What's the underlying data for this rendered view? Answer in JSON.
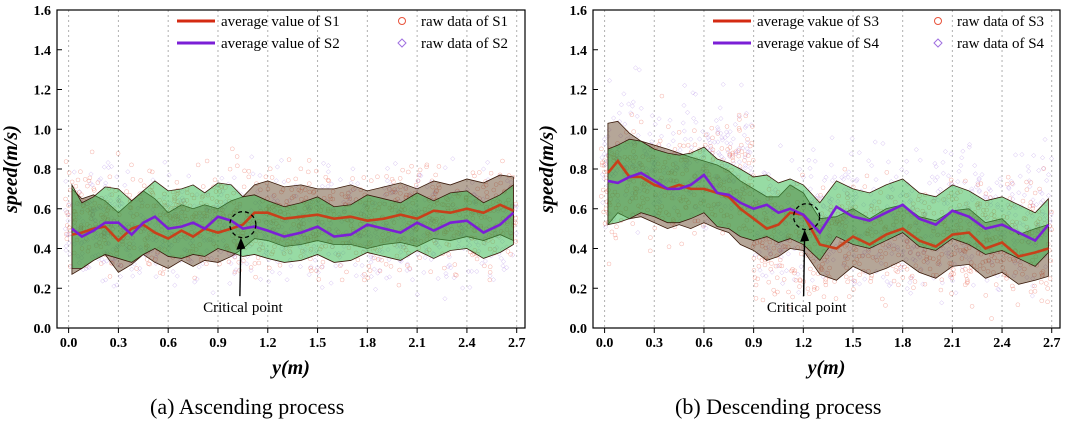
{
  "charts": [
    {
      "type": "line",
      "ylabel": "speed(m/s)",
      "xlabel": "y(m)",
      "xlim": [
        -0.07,
        2.75
      ],
      "ylim": [
        0,
        1.6
      ],
      "xticks": [
        "0.0",
        "0.3",
        "0.6",
        "0.9",
        "1.2",
        "1.5",
        "1.8",
        "2.1",
        "2.4",
        "2.7"
      ],
      "yticks": [
        "0.0",
        "0.2",
        "0.4",
        "0.6",
        "0.8",
        "1.0",
        "1.2",
        "1.4",
        "1.6"
      ],
      "legend_position": "top",
      "legend": [
        {
          "label": "average value of S1",
          "kind": "line",
          "color": "#d42a12"
        },
        {
          "label": "raw data of S1",
          "kind": "circle",
          "color": "#e8533c"
        },
        {
          "label": "average value of S2",
          "kind": "line",
          "color": "#7b1fd6"
        },
        {
          "label": "raw data of S2",
          "kind": "diamond",
          "color": "#a070e0"
        }
      ],
      "annotation": {
        "label": "Critical point",
        "circle_at": [
          1.05,
          0.52
        ],
        "text_at": [
          1.05,
          0.08
        ]
      },
      "series": [
        {
          "name": "average value of S1",
          "color": "#c8401a",
          "x": [
            0.02,
            0.08,
            0.15,
            0.22,
            0.3,
            0.38,
            0.45,
            0.52,
            0.6,
            0.68,
            0.75,
            0.82,
            0.9,
            0.98,
            1.05,
            1.12,
            1.2,
            1.3,
            1.4,
            1.5,
            1.6,
            1.7,
            1.8,
            1.9,
            2.0,
            2.1,
            2.2,
            2.3,
            2.4,
            2.5,
            2.6,
            2.68
          ],
          "y": [
            0.47,
            0.48,
            0.5,
            0.51,
            0.44,
            0.5,
            0.52,
            0.48,
            0.45,
            0.49,
            0.46,
            0.5,
            0.48,
            0.5,
            0.52,
            0.58,
            0.58,
            0.55,
            0.56,
            0.57,
            0.55,
            0.56,
            0.54,
            0.55,
            0.57,
            0.55,
            0.59,
            0.58,
            0.6,
            0.58,
            0.62,
            0.59
          ],
          "band_upper": [
            0.7,
            0.65,
            0.67,
            0.64,
            0.58,
            0.64,
            0.69,
            0.65,
            0.58,
            0.62,
            0.6,
            0.62,
            0.6,
            0.64,
            0.66,
            0.72,
            0.74,
            0.71,
            0.72,
            0.7,
            0.7,
            0.72,
            0.69,
            0.71,
            0.73,
            0.7,
            0.74,
            0.72,
            0.75,
            0.73,
            0.77,
            0.76
          ],
          "band_lower": [
            0.27,
            0.3,
            0.34,
            0.37,
            0.28,
            0.32,
            0.37,
            0.33,
            0.3,
            0.34,
            0.31,
            0.34,
            0.33,
            0.36,
            0.4,
            0.45,
            0.44,
            0.41,
            0.42,
            0.44,
            0.42,
            0.42,
            0.4,
            0.42,
            0.43,
            0.41,
            0.45,
            0.44,
            0.46,
            0.44,
            0.47,
            0.44
          ]
        },
        {
          "name": "average value of S2",
          "color": "#7b1fd6",
          "x": [
            0.02,
            0.08,
            0.15,
            0.22,
            0.3,
            0.38,
            0.45,
            0.52,
            0.6,
            0.68,
            0.75,
            0.82,
            0.9,
            0.98,
            1.05,
            1.12,
            1.2,
            1.3,
            1.4,
            1.5,
            1.6,
            1.7,
            1.8,
            1.9,
            2.0,
            2.1,
            2.2,
            2.3,
            2.4,
            2.5,
            2.6,
            2.68
          ],
          "y": [
            0.5,
            0.46,
            0.49,
            0.53,
            0.53,
            0.47,
            0.53,
            0.56,
            0.5,
            0.51,
            0.53,
            0.5,
            0.56,
            0.54,
            0.5,
            0.51,
            0.49,
            0.46,
            0.48,
            0.51,
            0.46,
            0.47,
            0.52,
            0.5,
            0.48,
            0.53,
            0.49,
            0.53,
            0.54,
            0.48,
            0.52,
            0.58
          ],
          "band_upper": [
            0.72,
            0.63,
            0.66,
            0.71,
            0.7,
            0.64,
            0.69,
            0.74,
            0.69,
            0.7,
            0.72,
            0.68,
            0.73,
            0.72,
            0.66,
            0.67,
            0.64,
            0.61,
            0.63,
            0.66,
            0.61,
            0.62,
            0.67,
            0.65,
            0.63,
            0.68,
            0.64,
            0.68,
            0.69,
            0.63,
            0.67,
            0.72
          ],
          "band_lower": [
            0.3,
            0.3,
            0.34,
            0.37,
            0.35,
            0.33,
            0.37,
            0.4,
            0.36,
            0.35,
            0.37,
            0.36,
            0.4,
            0.38,
            0.36,
            0.37,
            0.35,
            0.33,
            0.34,
            0.37,
            0.33,
            0.34,
            0.38,
            0.36,
            0.34,
            0.39,
            0.35,
            0.39,
            0.4,
            0.35,
            0.38,
            0.42
          ]
        }
      ],
      "raw_points": [
        {
          "series": "raw data of S1",
          "center": 0.55,
          "spread": 0.38,
          "count": 900
        },
        {
          "series": "raw data of S2",
          "center": 0.5,
          "spread": 0.42,
          "count": 700
        }
      ],
      "caption": "(a)  Ascending process"
    },
    {
      "type": "line",
      "ylabel": "speed(m/s)",
      "xlabel": "y(m)",
      "xlim": [
        -0.07,
        2.75
      ],
      "ylim": [
        0,
        1.6
      ],
      "xticks": [
        "0.0",
        "0.3",
        "0.6",
        "0.9",
        "1.2",
        "1.5",
        "1.8",
        "2.1",
        "2.4",
        "2.7"
      ],
      "yticks": [
        "0.0",
        "0.2",
        "0.4",
        "0.6",
        "0.8",
        "1.0",
        "1.2",
        "1.4",
        "1.6"
      ],
      "legend_position": "top",
      "legend": [
        {
          "label": "average vakue of S3",
          "kind": "line",
          "color": "#d42a12"
        },
        {
          "label": "raw data of S3",
          "kind": "circle",
          "color": "#e8533c"
        },
        {
          "label": "average vakue of S4",
          "kind": "line",
          "color": "#7b1fd6"
        },
        {
          "label": "raw data of S4",
          "kind": "diamond",
          "color": "#a070e0"
        }
      ],
      "annotation": {
        "label": "Critical point",
        "circle_at": [
          1.22,
          0.56
        ],
        "text_at": [
          1.22,
          0.08
        ]
      },
      "series": [
        {
          "name": "average vakue of S3",
          "color": "#c8401a",
          "x": [
            0.02,
            0.08,
            0.15,
            0.22,
            0.3,
            0.38,
            0.45,
            0.52,
            0.6,
            0.68,
            0.75,
            0.82,
            0.9,
            0.98,
            1.05,
            1.12,
            1.2,
            1.3,
            1.4,
            1.5,
            1.6,
            1.7,
            1.8,
            1.9,
            2.0,
            2.1,
            2.2,
            2.3,
            2.4,
            2.5,
            2.6,
            2.68
          ],
          "y": [
            0.78,
            0.84,
            0.76,
            0.76,
            0.72,
            0.7,
            0.72,
            0.7,
            0.7,
            0.68,
            0.66,
            0.6,
            0.55,
            0.5,
            0.52,
            0.58,
            0.57,
            0.42,
            0.4,
            0.46,
            0.42,
            0.47,
            0.5,
            0.44,
            0.41,
            0.47,
            0.48,
            0.4,
            0.43,
            0.36,
            0.38,
            0.4
          ],
          "band_upper": [
            1.03,
            1.04,
            0.98,
            0.94,
            0.92,
            0.9,
            0.88,
            0.86,
            0.84,
            0.82,
            0.79,
            0.74,
            0.7,
            0.66,
            0.66,
            0.72,
            0.68,
            0.55,
            0.56,
            0.6,
            0.55,
            0.6,
            0.62,
            0.56,
            0.54,
            0.59,
            0.6,
            0.53,
            0.55,
            0.47,
            0.5,
            0.52
          ],
          "band_lower": [
            0.52,
            0.58,
            0.55,
            0.56,
            0.53,
            0.5,
            0.52,
            0.5,
            0.53,
            0.5,
            0.48,
            0.42,
            0.39,
            0.34,
            0.36,
            0.4,
            0.39,
            0.27,
            0.24,
            0.31,
            0.27,
            0.3,
            0.34,
            0.28,
            0.25,
            0.31,
            0.32,
            0.25,
            0.28,
            0.22,
            0.24,
            0.26
          ]
        },
        {
          "name": "average vakue of S4",
          "color": "#7b1fd6",
          "x": [
            0.02,
            0.08,
            0.15,
            0.22,
            0.3,
            0.38,
            0.45,
            0.52,
            0.6,
            0.68,
            0.75,
            0.82,
            0.9,
            0.98,
            1.05,
            1.12,
            1.2,
            1.3,
            1.4,
            1.5,
            1.6,
            1.7,
            1.8,
            1.9,
            2.0,
            2.1,
            2.2,
            2.3,
            2.4,
            2.5,
            2.6,
            2.68
          ],
          "y": [
            0.74,
            0.73,
            0.76,
            0.78,
            0.74,
            0.7,
            0.7,
            0.72,
            0.77,
            0.68,
            0.67,
            0.63,
            0.6,
            0.62,
            0.58,
            0.6,
            0.57,
            0.48,
            0.61,
            0.56,
            0.54,
            0.58,
            0.62,
            0.55,
            0.52,
            0.59,
            0.56,
            0.5,
            0.52,
            0.48,
            0.44,
            0.52
          ],
          "band_upper": [
            0.9,
            0.92,
            0.95,
            0.94,
            0.9,
            0.88,
            0.87,
            0.88,
            0.91,
            0.85,
            0.83,
            0.8,
            0.76,
            0.77,
            0.73,
            0.75,
            0.72,
            0.63,
            0.74,
            0.7,
            0.68,
            0.72,
            0.75,
            0.68,
            0.66,
            0.72,
            0.69,
            0.64,
            0.66,
            0.62,
            0.58,
            0.65
          ],
          "band_lower": [
            0.52,
            0.53,
            0.55,
            0.58,
            0.56,
            0.53,
            0.53,
            0.55,
            0.58,
            0.51,
            0.5,
            0.46,
            0.44,
            0.46,
            0.43,
            0.45,
            0.42,
            0.34,
            0.46,
            0.42,
            0.4,
            0.44,
            0.48,
            0.41,
            0.39,
            0.45,
            0.42,
            0.37,
            0.39,
            0.35,
            0.31,
            0.38
          ]
        }
      ],
      "raw_points": [
        {
          "series": "raw data of S3",
          "center": 0.6,
          "spread": 0.45,
          "count": 900
        },
        {
          "series": "raw data of S4",
          "center": 0.7,
          "spread": 0.5,
          "count": 800
        }
      ],
      "caption": "(b)  Descending process"
    }
  ]
}
